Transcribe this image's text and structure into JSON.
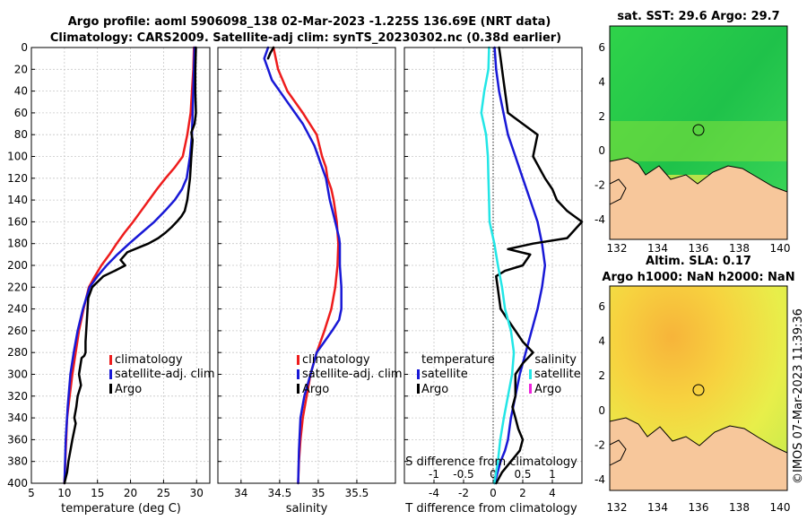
{
  "colors": {
    "climatology": "#ee1c1c",
    "satellite": "#1818d6",
    "argo": "#000000",
    "sal_satellite": "#22e6e6",
    "sal_argo": "#ee22dd",
    "land": "#f7c79b"
  },
  "chart_data": [
    {
      "id": "temperature",
      "type": "line",
      "title": "Argo profile: aoml 5906098_138 02-Mar-2023 -1.225S 136.69E (NRT data)",
      "subtitle": "Climatology: CARS2009. Satellite-adj clim: synTS_20230302.nc (0.38d earlier)",
      "xlabel": "temperature (deg C)",
      "xlim": [
        5,
        32
      ],
      "ylim": [
        0,
        400
      ],
      "y_reversed": true,
      "xticks": [
        5,
        10,
        15,
        20,
        25,
        30
      ],
      "yticks": [
        0,
        20,
        40,
        60,
        80,
        100,
        120,
        140,
        160,
        180,
        200,
        220,
        240,
        260,
        280,
        300,
        320,
        340,
        360,
        380,
        400
      ],
      "legend": [
        "climatology",
        "satellite-adj. clim",
        "Argo"
      ],
      "legend_loc": "lower-right",
      "series": [
        {
          "name": "climatology",
          "color_key": "climatology",
          "x": [
            29.6,
            29.5,
            29.3,
            29.1,
            28.6,
            27.9,
            26.7,
            25.3,
            24.0,
            22.8,
            21.6,
            20.4,
            19.1,
            17.9,
            16.8,
            15.6,
            14.6,
            13.7,
            12.9,
            12.2,
            11.7,
            11.2,
            10.8,
            10.4,
            10.2,
            10.0
          ],
          "y": [
            0,
            20,
            40,
            60,
            80,
            100,
            110,
            120,
            130,
            140,
            150,
            160,
            170,
            180,
            190,
            200,
            210,
            220,
            240,
            260,
            280,
            300,
            320,
            340,
            370,
            400
          ]
        },
        {
          "name": "satellite-adj. clim",
          "color_key": "satellite",
          "x": [
            29.7,
            29.6,
            29.5,
            29.4,
            29.3,
            29.0,
            28.5,
            27.8,
            26.7,
            25.2,
            23.6,
            21.7,
            19.8,
            18.0,
            16.4,
            15.0,
            13.8,
            12.8,
            12.0,
            11.4,
            10.9,
            10.5,
            10.2,
            10.0
          ],
          "y": [
            0,
            20,
            40,
            60,
            80,
            100,
            120,
            130,
            140,
            150,
            160,
            170,
            180,
            190,
            200,
            210,
            220,
            240,
            260,
            280,
            300,
            330,
            360,
            400
          ]
        },
        {
          "name": "Argo",
          "color_key": "argo",
          "x": [
            29.9,
            29.8,
            29.8,
            29.9,
            29.7,
            29.2,
            29.4,
            29.2,
            29.0,
            28.6,
            28.2,
            27.7,
            27.0,
            26.2,
            25.3,
            24.2,
            22.7,
            21.5,
            19.5,
            18.5,
            19.2,
            17.6,
            15.9,
            14.2,
            13.6,
            13.4,
            13.2,
            13.2,
            13.0,
            12.6,
            12.2,
            12.5,
            12.0,
            11.8,
            11.5,
            11.7,
            11.2,
            10.9,
            10.6,
            10.4,
            10.2,
            10.0
          ],
          "y": [
            0,
            20,
            40,
            60,
            70,
            78,
            85,
            100,
            120,
            140,
            150,
            155,
            160,
            165,
            170,
            175,
            180,
            183,
            188,
            195,
            200,
            205,
            210,
            220,
            230,
            250,
            270,
            280,
            283,
            285,
            300,
            310,
            320,
            330,
            340,
            345,
            360,
            370,
            380,
            390,
            395,
            400
          ]
        }
      ]
    },
    {
      "id": "salinity",
      "type": "line",
      "xlabel": "salinity",
      "xlim": [
        33.7,
        36.0
      ],
      "ylim": [
        0,
        400
      ],
      "y_reversed": true,
      "xticks": [
        34,
        34.5,
        35,
        35.5
      ],
      "xtick_labels": [
        "34",
        "34.5",
        "35",
        "35.5"
      ],
      "legend": [
        "climatology",
        "satellite-adj. clim",
        "Argo"
      ],
      "legend_loc": "lower-right",
      "series": [
        {
          "name": "climatology",
          "color_key": "climatology",
          "x": [
            34.42,
            34.48,
            34.6,
            34.8,
            34.98,
            35.05,
            35.1,
            35.12,
            35.17,
            35.2,
            35.22,
            35.24,
            35.25,
            35.26,
            35.25,
            35.22,
            35.17,
            35.08,
            34.98,
            34.9,
            34.85,
            34.8,
            34.77,
            34.75,
            34.74
          ],
          "y": [
            0,
            20,
            40,
            60,
            80,
            100,
            110,
            120,
            130,
            140,
            150,
            160,
            170,
            180,
            200,
            220,
            240,
            260,
            280,
            300,
            320,
            340,
            360,
            380,
            400
          ]
        },
        {
          "name": "satellite-adj. clim",
          "color_key": "satellite",
          "x": [
            34.35,
            34.3,
            34.4,
            34.6,
            34.8,
            34.95,
            35.05,
            35.1,
            35.15,
            35.22,
            35.27,
            35.28,
            35.28,
            35.3,
            35.3,
            35.27,
            35.18,
            35.08,
            34.98,
            34.9,
            34.82,
            34.77,
            34.75,
            34.74
          ],
          "y": [
            0,
            10,
            30,
            50,
            70,
            90,
            110,
            120,
            140,
            160,
            175,
            180,
            200,
            220,
            240,
            250,
            260,
            270,
            280,
            300,
            320,
            340,
            370,
            400
          ]
        },
        {
          "name": "Argo",
          "color_key": "argo",
          "x": [
            34.42,
            34.38,
            34.35
          ],
          "y": [
            0,
            5,
            10
          ]
        }
      ]
    },
    {
      "id": "difference",
      "type": "line",
      "xlabel": "T difference from climatology",
      "xlim": [
        -6,
        6
      ],
      "x2label": "S difference from climatology",
      "x2lim": [
        -1.5,
        1.5
      ],
      "x2ticks": [
        -1,
        -0.5,
        0,
        0.5,
        1
      ],
      "x2tick_labels": [
        "-1",
        "-0.5",
        "0",
        "0.5",
        "1"
      ],
      "ylim": [
        0,
        400
      ],
      "y_reversed": true,
      "xticks": [
        -4,
        -2,
        0,
        2,
        4
      ],
      "xtick_labels": [
        "-4",
        "-2",
        "0",
        "2",
        "4"
      ],
      "legend_temperature_title": "temperature",
      "legend_salinity_title": "salinity",
      "legend_temperature": [
        "satellite",
        "Argo"
      ],
      "legend_salinity": [
        "satellite",
        "Argo"
      ],
      "series": [
        {
          "name": "T satellite",
          "color_key": "satellite",
          "axis": "T",
          "x": [
            0.1,
            0.2,
            0.4,
            0.7,
            1.0,
            1.5,
            2.0,
            2.5,
            3.0,
            3.3,
            3.5,
            3.3,
            3.0,
            2.6,
            2.2,
            1.8,
            1.5,
            1.2,
            1.0,
            0.8,
            0.5,
            0.3,
            0.1
          ],
          "y": [
            0,
            20,
            40,
            60,
            80,
            100,
            120,
            140,
            160,
            180,
            200,
            220,
            240,
            260,
            280,
            300,
            320,
            340,
            360,
            370,
            380,
            390,
            400
          ]
        },
        {
          "name": "T Argo",
          "color_key": "argo",
          "axis": "T",
          "x": [
            0.4,
            0.5,
            0.7,
            1.0,
            2.0,
            3.0,
            2.7,
            3.5,
            4.0,
            4.3,
            5.0,
            6.0,
            5.0,
            2.7,
            1.0,
            2.5,
            2.0,
            0.8,
            0.2,
            0.3,
            0.5,
            1.0,
            1.5,
            2.0,
            2.7,
            2.0,
            1.5,
            1.5,
            1.3,
            1.5,
            1.7,
            2.0,
            1.8,
            1.2,
            0.6,
            0.2
          ],
          "y": [
            0,
            10,
            30,
            60,
            70,
            80,
            100,
            120,
            130,
            140,
            150,
            160,
            175,
            180,
            185,
            190,
            200,
            205,
            210,
            220,
            240,
            250,
            260,
            270,
            280,
            290,
            300,
            320,
            330,
            340,
            350,
            360,
            370,
            380,
            390,
            400
          ]
        },
        {
          "name": "S satellite",
          "color_key": "sal_satellite",
          "axis": "S",
          "x": [
            -0.07,
            -0.08,
            -0.15,
            -0.2,
            -0.12,
            -0.09,
            -0.08,
            -0.07,
            -0.06,
            0.02,
            0.08,
            0.15,
            0.2,
            0.3,
            0.35,
            0.32,
            0.25,
            0.18,
            0.12,
            0.08,
            0.05,
            0.02
          ],
          "y": [
            0,
            20,
            40,
            60,
            80,
            100,
            120,
            140,
            160,
            180,
            200,
            220,
            240,
            260,
            280,
            300,
            320,
            340,
            360,
            380,
            390,
            400
          ]
        }
      ]
    }
  ],
  "maps": [
    {
      "id": "sst",
      "title": "sat. SST: 29.6 Argo: 29.7",
      "xticks": [
        "132",
        "134",
        "136",
        "138",
        "140"
      ],
      "yticks": [
        "6",
        "4",
        "2",
        "0",
        "-2",
        "-4"
      ]
    },
    {
      "id": "sla",
      "title_line1": "Altim. SLA: 0.17",
      "title_line2": "Argo h1000: NaN h2000: NaN",
      "xticks": [
        "132",
        "134",
        "136",
        "138",
        "140"
      ],
      "yticks": [
        "6",
        "4",
        "2",
        "0",
        "-2",
        "-4"
      ]
    }
  ],
  "watermark": "©IMOS 07-Mar-2023 11:39:36"
}
